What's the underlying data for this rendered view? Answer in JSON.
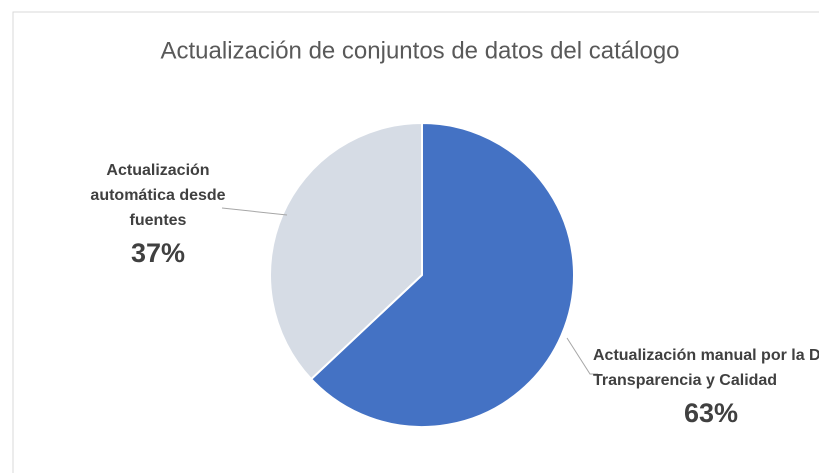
{
  "chart_data": {
    "type": "pie",
    "title": "Actualización de conjuntos de datos del catálogo",
    "categories": [
      "Actualización manual por la DG Transparencia y Calidad",
      "Actualización automática desde fuentes"
    ],
    "values": [
      63,
      37
    ],
    "value_labels": [
      "63%",
      "37%"
    ],
    "colors": [
      "#4472c4",
      "#d6dce5"
    ]
  }
}
